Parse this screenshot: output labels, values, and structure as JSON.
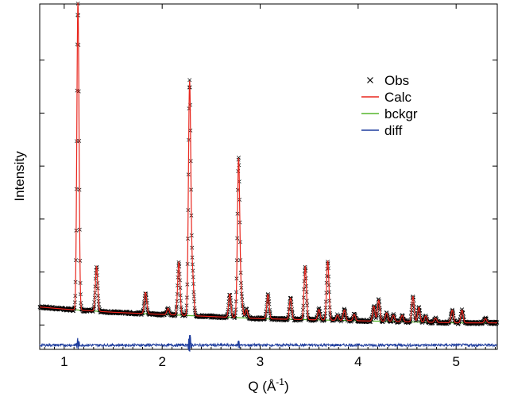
{
  "chart_data": {
    "type": "line",
    "xlabel": "Q (Å",
    "xlabel_superscript": "-1",
    "xlabel_suffix": ")",
    "ylabel": "Intensity",
    "xlim": [
      0.75,
      5.42
    ],
    "ylim": [
      -0.23,
      3.03
    ],
    "x_ticks": [
      1,
      2,
      3,
      4,
      5
    ],
    "y_ticks_unlabeled": [
      0,
      0.5,
      1.0,
      1.5,
      2.0,
      2.5
    ],
    "grid": false,
    "legend_position": "top-right",
    "colors": {
      "obs": "#000000",
      "calc": "#e8261d",
      "bckgr": "#55b52c",
      "diff": "#1f3d9e"
    },
    "series": [
      {
        "name": "Obs",
        "style": "markers-x",
        "color": "#000000"
      },
      {
        "name": "Calc",
        "style": "line",
        "color": "#e8261d"
      },
      {
        "name": "bckgr",
        "style": "line",
        "color": "#55b52c"
      },
      {
        "name": "diff",
        "style": "line",
        "color": "#1f3d9e"
      }
    ],
    "background": {
      "x": [
        0.75,
        1.0,
        1.5,
        2.0,
        2.5,
        3.0,
        3.5,
        4.0,
        4.5,
        5.0,
        5.42
      ],
      "y": [
        0.17,
        0.15,
        0.12,
        0.1,
        0.08,
        0.06,
        0.05,
        0.04,
        0.03,
        0.02,
        0.02
      ]
    },
    "peaks": [
      {
        "q": 1.14,
        "height": 2.9,
        "width": 0.011
      },
      {
        "q": 1.33,
        "height": 0.42,
        "width": 0.012
      },
      {
        "q": 1.83,
        "height": 0.2,
        "width": 0.012
      },
      {
        "q": 2.06,
        "height": 0.06,
        "width": 0.012
      },
      {
        "q": 2.17,
        "height": 0.5,
        "width": 0.012
      },
      {
        "q": 2.28,
        "height": 2.2,
        "width": 0.012
      },
      {
        "q": 2.31,
        "height": 0.38,
        "width": 0.012
      },
      {
        "q": 2.69,
        "height": 0.22,
        "width": 0.012
      },
      {
        "q": 2.78,
        "height": 1.5,
        "width": 0.012
      },
      {
        "q": 2.81,
        "height": 0.18,
        "width": 0.012
      },
      {
        "q": 2.86,
        "height": 0.08,
        "width": 0.012
      },
      {
        "q": 3.08,
        "height": 0.23,
        "width": 0.012
      },
      {
        "q": 3.31,
        "height": 0.2,
        "width": 0.012
      },
      {
        "q": 3.46,
        "height": 0.5,
        "width": 0.012
      },
      {
        "q": 3.6,
        "height": 0.1,
        "width": 0.012
      },
      {
        "q": 3.69,
        "height": 0.56,
        "width": 0.012
      },
      {
        "q": 3.79,
        "height": 0.05,
        "width": 0.012
      },
      {
        "q": 3.86,
        "height": 0.1,
        "width": 0.012
      },
      {
        "q": 3.96,
        "height": 0.06,
        "width": 0.012
      },
      {
        "q": 4.16,
        "height": 0.14,
        "width": 0.012
      },
      {
        "q": 4.21,
        "height": 0.2,
        "width": 0.012
      },
      {
        "q": 4.29,
        "height": 0.08,
        "width": 0.012
      },
      {
        "q": 4.36,
        "height": 0.06,
        "width": 0.012
      },
      {
        "q": 4.45,
        "height": 0.06,
        "width": 0.012
      },
      {
        "q": 4.56,
        "height": 0.24,
        "width": 0.012
      },
      {
        "q": 4.62,
        "height": 0.14,
        "width": 0.012
      },
      {
        "q": 4.69,
        "height": 0.06,
        "width": 0.012
      },
      {
        "q": 4.79,
        "height": 0.04,
        "width": 0.012
      },
      {
        "q": 4.96,
        "height": 0.12,
        "width": 0.012
      },
      {
        "q": 5.06,
        "height": 0.12,
        "width": 0.012
      },
      {
        "q": 5.3,
        "height": 0.04,
        "width": 0.012
      }
    ],
    "diff_offset": -0.19,
    "diff_spikes": [
      {
        "q": 1.14,
        "amplitude": 0.06
      },
      {
        "q": 2.28,
        "amplitude": 0.1
      },
      {
        "q": 2.78,
        "amplitude": 0.04
      }
    ]
  }
}
